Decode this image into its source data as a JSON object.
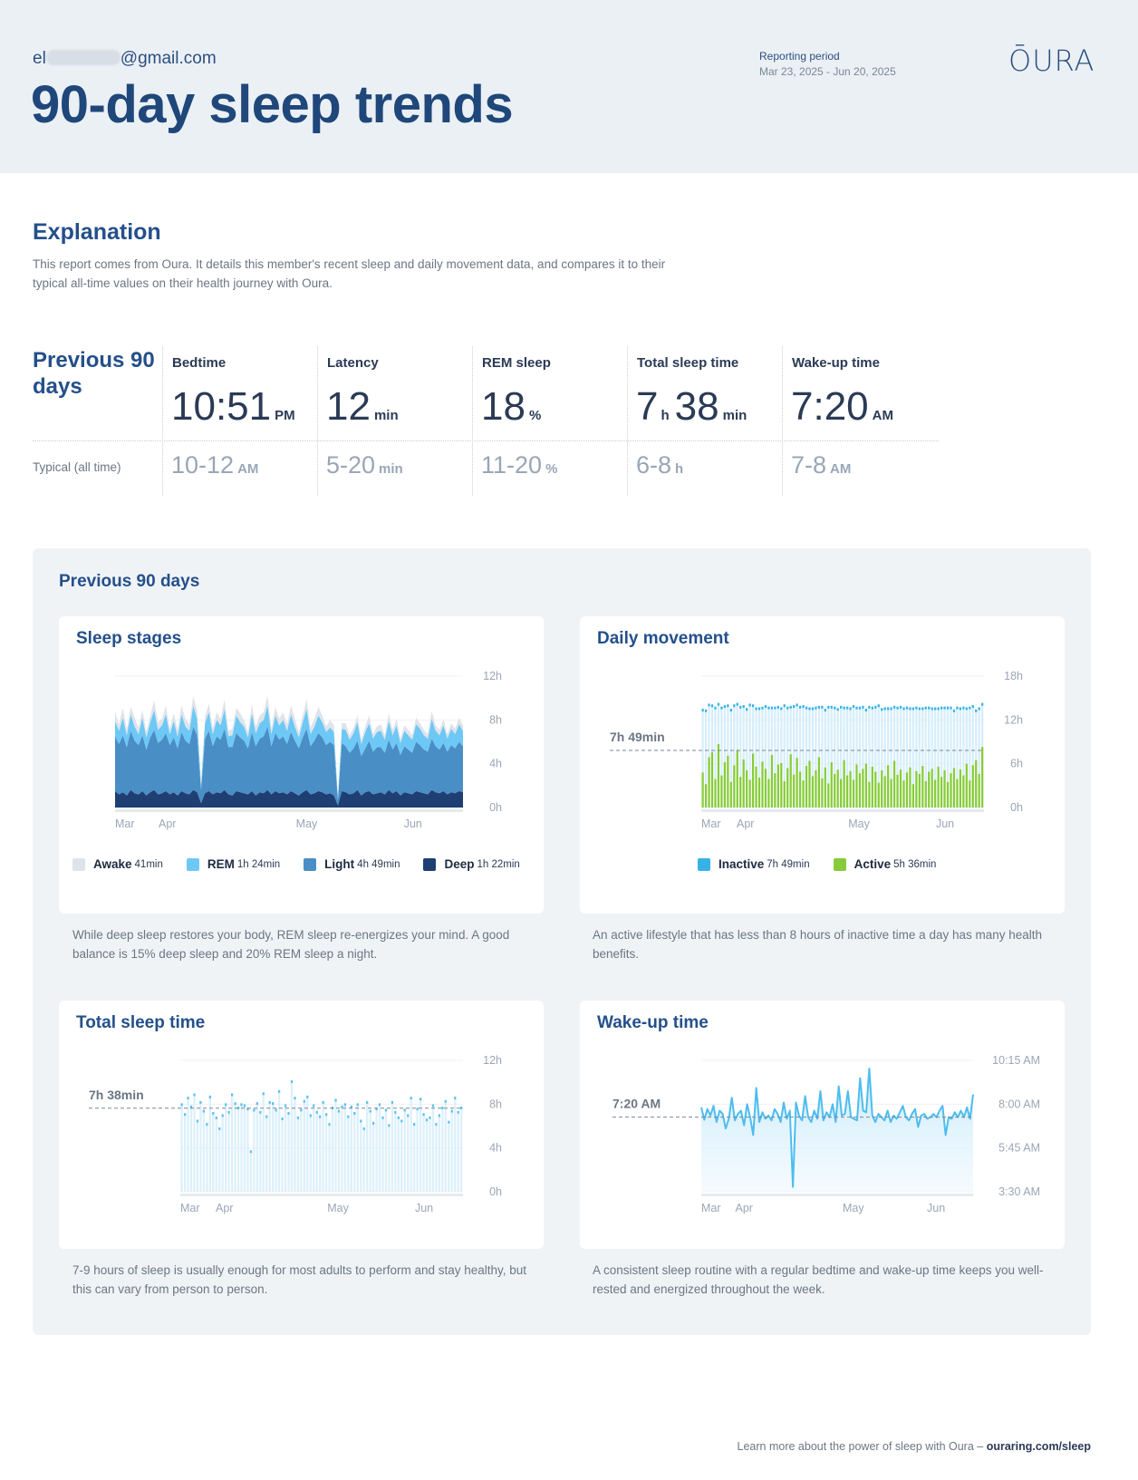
{
  "header": {
    "email_prefix": "el",
    "email_suffix": "@gmail.com",
    "title": "90-day sleep trends",
    "period_label": "Reporting period",
    "period_value": "Mar 23, 2025 - Jun 20, 2025",
    "logo": "ŌURA"
  },
  "explanation": {
    "title": "Explanation",
    "text": "This report comes from Oura. It details this member's recent sleep and daily movement data, and compares it to their typical all-time values on their health journey with Oura."
  },
  "stats": {
    "heading": "Previous 90 days",
    "typical_label": "Typical (all time)",
    "bedtime": {
      "label": "Bedtime",
      "value": "10:51",
      "unit": "PM",
      "typical": "10-12",
      "typical_unit": "AM"
    },
    "latency": {
      "label": "Latency",
      "value": "12",
      "unit": "min",
      "typical": "5-20",
      "typical_unit": "min"
    },
    "rem": {
      "label": "REM sleep",
      "value": "18",
      "unit": "%",
      "typical": "11-20",
      "typical_unit": "%"
    },
    "total": {
      "label": "Total sleep time",
      "value_h": "7",
      "unit_h": "h",
      "value_m": "38",
      "unit_m": "min",
      "typical": "6-8",
      "typical_unit": "h"
    },
    "wake": {
      "label": "Wake-up time",
      "value": "7:20",
      "unit": "AM",
      "typical": "7-8",
      "typical_unit": "AM"
    }
  },
  "panel": {
    "title": "Previous 90 days"
  },
  "cards": {
    "sleep_stages": {
      "title": "Sleep stages",
      "desc": "While deep sleep restores your body, REM sleep re-energizes your mind. A good balance is 15% deep sleep and 20% REM sleep a night.",
      "legend": [
        {
          "name": "Awake",
          "value": "41min",
          "color": "#dfe3ea"
        },
        {
          "name": "REM",
          "value": "1h 24min",
          "color": "#6ec8f5"
        },
        {
          "name": "Light",
          "value": "4h 49min",
          "color": "#4a8ec6"
        },
        {
          "name": "Deep",
          "value": "1h 22min",
          "color": "#1f3f72"
        }
      ]
    },
    "daily_movement": {
      "title": "Daily movement",
      "desc": "An active lifestyle that has less than 8 hours of inactive time a day has many health benefits.",
      "legend": [
        {
          "name": "Inactive",
          "value": "7h 49min",
          "color": "#36b3e6"
        },
        {
          "name": "Active",
          "value": "5h 36min",
          "color": "#86cc3a"
        }
      ]
    },
    "total_sleep": {
      "title": "Total sleep time",
      "desc": "7-9 hours of sleep is usually enough for most adults to perform and stay healthy, but this can vary from person to person."
    },
    "wake_time": {
      "title": "Wake-up time",
      "desc": "A consistent sleep routine with a regular bedtime and wake-up time keeps you well-rested and energized throughout the week."
    }
  },
  "chart_data": [
    {
      "type": "area",
      "title": "Sleep stages",
      "x_labels": [
        "Mar",
        "Apr",
        "May",
        "Jun"
      ],
      "y_ticks": [
        "12h",
        "8h",
        "4h",
        "0h"
      ],
      "ylim": [
        0,
        12
      ],
      "unit": "h",
      "stacked": true,
      "series": [
        {
          "name": "Deep",
          "color": "#1f3f72",
          "values": [
            1.5,
            1.2,
            1.4,
            1.1,
            1.6,
            1.3,
            1.2,
            1.5,
            1.1,
            1.4,
            1.6,
            1.2,
            1.3,
            1.5,
            1.2,
            1.4,
            1.1,
            1.5,
            1.3,
            1.2,
            1.6,
            1.4,
            0.4,
            1.3,
            1.5,
            1.2,
            1.4,
            1.3,
            1.6,
            1.2,
            1.1,
            1.5,
            1.4,
            1.3,
            1.2,
            1.5,
            1.1,
            1.4,
            1.3,
            1.6,
            1.2,
            1.5,
            1.3,
            1.4,
            1.2,
            1.5,
            1.3,
            1.1,
            1.4,
            1.6,
            1.2,
            1.3,
            1.5,
            1.4,
            1.2,
            1.3,
            1.1,
            0.2,
            1.5,
            1.4,
            1.2,
            1.3,
            1.6,
            1.1,
            1.4,
            1.5,
            1.2,
            1.3,
            1.4,
            1.2,
            1.6,
            1.3,
            1.5,
            1.1,
            1.4,
            1.3,
            1.2,
            1.5,
            1.4,
            1.3,
            1.2,
            1.6,
            1.4,
            1.3,
            1.5,
            1.2,
            1.4,
            1.3,
            1.5,
            1.4
          ]
        },
        {
          "name": "Light",
          "values": [
            5.0,
            4.6,
            5.2,
            4.4,
            5.4,
            4.8,
            4.5,
            5.1,
            4.2,
            5.0,
            5.5,
            4.7,
            4.9,
            5.3,
            4.5,
            5.0,
            4.3,
            5.4,
            4.8,
            4.6,
            5.8,
            5.2,
            1.2,
            5.0,
            5.5,
            4.4,
            5.1,
            4.9,
            5.6,
            4.3,
            4.4,
            5.3,
            5.0,
            4.8,
            4.2,
            5.4,
            4.5,
            4.9,
            5.2,
            5.8,
            4.4,
            5.3,
            4.9,
            5.1,
            4.6,
            5.4,
            4.8,
            4.3,
            5.0,
            5.6,
            4.4,
            4.8,
            5.3,
            5.0,
            4.5,
            4.7,
            4.6,
            0.5,
            4.4,
            4.2,
            3.8,
            4.1,
            4.5,
            3.6,
            4.0,
            4.6,
            3.9,
            4.2,
            4.1,
            3.8,
            4.6,
            4.0,
            4.4,
            3.7,
            4.2,
            4.0,
            3.8,
            4.5,
            4.3,
            4.0,
            3.9,
            4.7,
            4.2,
            4.0,
            4.4,
            3.9,
            4.3,
            4.1,
            4.5,
            4.2
          ]
        },
        {
          "name": "REM",
          "values": [
            1.4,
            1.2,
            1.6,
            1.1,
            1.5,
            1.3,
            1.0,
            1.6,
            1.1,
            1.4,
            1.8,
            1.2,
            1.3,
            1.7,
            1.0,
            1.5,
            1.1,
            1.6,
            1.3,
            1.2,
            1.9,
            1.5,
            0.4,
            1.4,
            1.7,
            1.1,
            1.5,
            1.3,
            1.8,
            1.0,
            1.1,
            1.6,
            1.4,
            1.3,
            1.0,
            1.7,
            1.2,
            1.4,
            1.5,
            1.9,
            1.1,
            1.6,
            1.3,
            1.5,
            1.2,
            1.6,
            1.3,
            1.0,
            1.4,
            1.8,
            1.1,
            1.3,
            1.6,
            1.4,
            1.2,
            1.3,
            1.2,
            0.2,
            1.3,
            1.5,
            1.2,
            1.4,
            1.7,
            1.1,
            1.5,
            1.6,
            1.2,
            1.4,
            1.5,
            1.2,
            1.7,
            1.3,
            1.6,
            1.1,
            1.4,
            1.3,
            1.2,
            1.6,
            1.5,
            1.3,
            1.2,
            1.8,
            1.4,
            1.3,
            1.6,
            1.2,
            1.5,
            1.3,
            1.6,
            1.4
          ]
        },
        {
          "name": "Awake",
          "values": [
            0.8,
            0.6,
            0.9,
            0.5,
            0.7,
            0.8,
            0.6,
            0.7,
            0.5,
            0.6,
            0.9,
            0.7,
            0.6,
            0.8,
            0.5,
            0.7,
            0.6,
            0.8,
            0.7,
            0.6,
            0.9,
            0.7,
            0.2,
            0.6,
            0.8,
            0.5,
            0.7,
            0.6,
            0.9,
            0.5,
            0.6,
            0.7,
            0.8,
            0.6,
            0.5,
            0.8,
            0.6,
            0.7,
            0.7,
            0.9,
            0.5,
            0.8,
            0.6,
            0.7,
            0.6,
            0.8,
            0.7,
            0.5,
            0.6,
            0.9,
            0.6,
            0.7,
            0.8,
            0.6,
            0.5,
            0.7,
            0.6,
            0.1,
            0.5,
            0.6,
            0.4,
            0.5,
            0.6,
            0.4,
            0.5,
            0.7,
            0.4,
            0.5,
            0.6,
            0.4,
            0.7,
            0.5,
            0.6,
            0.4,
            0.5,
            0.5,
            0.4,
            0.6,
            0.5,
            0.5,
            0.4,
            0.7,
            0.5,
            0.5,
            0.6,
            0.4,
            0.5,
            0.5,
            0.6,
            0.5
          ]
        }
      ]
    },
    {
      "type": "bar",
      "title": "Daily movement",
      "x_labels": [
        "Mar",
        "Apr",
        "May",
        "Jun"
      ],
      "y_ticks": [
        "18h",
        "12h",
        "6h",
        "0h"
      ],
      "ylim": [
        0,
        18
      ],
      "unit": "h",
      "reference_label": "7h 49min",
      "reference_value": 7.82,
      "series": [
        {
          "name": "Active",
          "color": "#86cc3a",
          "values": [
            4.8,
            3.2,
            6.9,
            7.6,
            3.9,
            8.7,
            4.4,
            6.2,
            7.1,
            3.5,
            5.8,
            7.9,
            4.2,
            6.6,
            5.1,
            3.8,
            7.4,
            5.6,
            4.1,
            6.3,
            5.3,
            3.9,
            7.2,
            4.7,
            5.9,
            6.1,
            3.6,
            5.4,
            7.3,
            4.5,
            6.8,
            4.9,
            3.7,
            5.7,
            6.4,
            4.3,
            5.1,
            6.9,
            4.0,
            5.5,
            3.3,
            6.2,
            4.6,
            5.2,
            3.9,
            6.5,
            4.4,
            5.0,
            3.8,
            5.9,
            4.7,
            5.3,
            6.0,
            3.5,
            5.6,
            4.9,
            3.4,
            5.1,
            4.3,
            5.8,
            3.9,
            6.4,
            4.5,
            5.2,
            3.7,
            4.8,
            5.5,
            3.2,
            5.0,
            4.6,
            5.7,
            3.6,
            4.9,
            5.3,
            3.8,
            5.6,
            4.2,
            5.1,
            3.5,
            4.7,
            5.4,
            3.9,
            5.2,
            4.4,
            6.0,
            3.7,
            5.8,
            6.5,
            4.6,
            8.3
          ]
        },
        {
          "name": "Inactive",
          "color": "#36b3e6",
          "values": [
            8.6,
            10.1,
            7.2,
            6.4,
            9.8,
            5.5,
            9.3,
            7.7,
            6.9,
            9.9,
            8.2,
            6.3,
            9.6,
            7.3,
            8.4,
            10.3,
            6.6,
            8.0,
            9.5,
            7.4,
            8.6,
            9.8,
            6.5,
            9.0,
            7.9,
            7.5,
            10.4,
            8.3,
            6.5,
            9.4,
            7.3,
            8.9,
            10.2,
            8.0,
            7.2,
            9.3,
            8.6,
            6.9,
            9.8,
            7.9,
            10.5,
            7.6,
            9.1,
            8.3,
            9.9,
            7.2,
            9.3,
            8.6,
            10.1,
            7.8,
            9.0,
            8.5,
            7.4,
            10.3,
            8.1,
            8.9,
            10.6,
            8.4,
            9.3,
            7.8,
            9.7,
            7.4,
            9.2,
            8.6,
            9.9,
            8.9,
            8.1,
            10.4,
            8.7,
            9.0,
            7.9,
            10.1,
            8.8,
            8.3,
            9.8,
            8.0,
            9.5,
            8.6,
            10.2,
            9.0,
            7.9,
            9.8,
            8.4,
            9.3,
            7.6,
            10.0,
            8.1,
            6.8,
            9.0,
            5.9
          ]
        }
      ]
    },
    {
      "type": "bar",
      "title": "Total sleep time",
      "x_labels": [
        "Mar",
        "Apr",
        "May",
        "Jun"
      ],
      "y_ticks": [
        "12h",
        "8h",
        "4h",
        "0h"
      ],
      "ylim": [
        0,
        12
      ],
      "unit": "h",
      "reference_label": "7h 38min",
      "reference_value": 7.63,
      "values": [
        8.0,
        7.1,
        8.6,
        7.8,
        8.9,
        6.5,
        8.2,
        7.4,
        6.2,
        8.7,
        7.2,
        6.8,
        5.8,
        7.0,
        8.0,
        7.3,
        8.9,
        8.1,
        7.7,
        8.0,
        7.9,
        7.6,
        3.7,
        7.5,
        8.1,
        7.3,
        9.0,
        6.9,
        8.2,
        8.1,
        7.5,
        9.2,
        6.7,
        7.9,
        7.2,
        10.1,
        8.6,
        6.8,
        7.5,
        8.3,
        8.7,
        7.0,
        7.9,
        7.3,
        6.9,
        8.2,
        7.1,
        6.2,
        7.7,
        8.4,
        7.4,
        7.8,
        8.0,
        6.9,
        7.8,
        7.2,
        8.0,
        6.5,
        5.8,
        8.2,
        7.4,
        6.3,
        7.6,
        8.0,
        6.8,
        7.5,
        6.1,
        8.2,
        7.3,
        6.8,
        6.5,
        7.5,
        7.0,
        8.6,
        6.2,
        7.6,
        8.5,
        7.1,
        6.6,
        6.8,
        7.9,
        6.2,
        7.0,
        7.7,
        8.3,
        6.4,
        7.4,
        8.6,
        7.3,
        7.7
      ]
    },
    {
      "type": "line",
      "title": "Wake-up time",
      "x_labels": [
        "Mar",
        "Apr",
        "May",
        "Jun"
      ],
      "y_ticks": [
        "10:15 AM",
        "8:00 AM",
        "5:45 AM",
        "3:30 AM"
      ],
      "ylim": [
        "3:30 AM",
        "10:15 AM"
      ],
      "reference_label": "7:20 AM",
      "reference_value": "7:20 AM",
      "values": [
        "7:50 AM",
        "7:12 AM",
        "7:45 AM",
        "7:25 AM",
        "7:55 AM",
        "7:05 AM",
        "7:40 AM",
        "7:30 AM",
        "6:45 AM",
        "7:15 AM",
        "8:20 AM",
        "7:10 AM",
        "7:30 AM",
        "7:40 AM",
        "6:55 AM",
        "8:00 AM",
        "7:20 AM",
        "6:25 AM",
        "8:50 AM",
        "7:05 AM",
        "7:35 AM",
        "7:15 AM",
        "7:25 AM",
        "7:10 AM",
        "7:45 AM",
        "7:30 AM",
        "7:05 AM",
        "8:05 AM",
        "7:15 AM",
        "7:40 AM",
        "3:45 AM",
        "8:05 AM",
        "7:25 AM",
        "7:10 AM",
        "8:25 AM",
        "7:20 AM",
        "7:05 AM",
        "7:40 AM",
        "7:15 AM",
        "8:40 AM",
        "7:10 AM",
        "7:35 AM",
        "7:20 AM",
        "8:00 AM",
        "7:05 AM",
        "8:55 AM",
        "7:25 AM",
        "7:30 AM",
        "8:40 AM",
        "7:20 AM",
        "7:15 AM",
        "7:10 AM",
        "9:20 AM",
        "7:40 AM",
        "7:35 AM",
        "9:50 AM",
        "7:25 AM",
        "7:05 AM",
        "7:30 AM",
        "7:20 AM",
        "7:10 AM",
        "7:40 AM",
        "7:05 AM",
        "7:25 AM",
        "7:15 AM",
        "7:35 AM",
        "7:55 AM",
        "7:20 AM",
        "7:10 AM",
        "7:30 AM",
        "7:45 AM",
        "6:50 AM",
        "7:25 AM",
        "7:30 AM",
        "7:15 AM",
        "7:20 AM",
        "7:30 AM",
        "7:20 AM",
        "7:40 AM",
        "7:55 AM",
        "6:25 AM",
        "7:20 AM",
        "7:15 AM",
        "7:35 AM",
        "7:20 AM",
        "7:40 AM",
        "7:20 AM",
        "7:50 AM",
        "7:15 AM",
        "8:30 AM"
      ]
    }
  ],
  "footer": {
    "text": "Learn more about the power of sleep with Oura – ",
    "link": "ouraring.com/sleep"
  }
}
